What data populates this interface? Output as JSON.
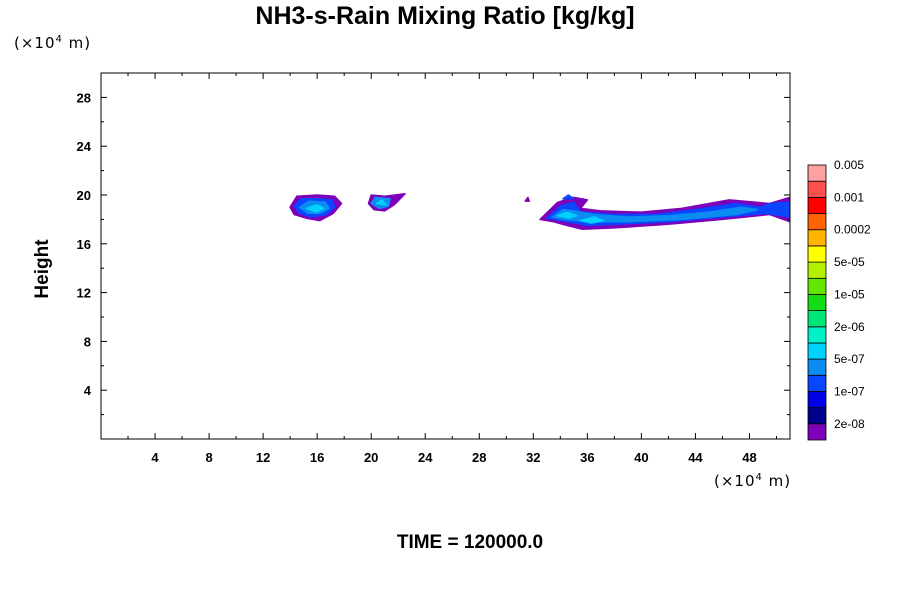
{
  "chart_data": {
    "type": "heatmap",
    "title": "NH3-s-Rain Mixing Ratio [kg/kg]",
    "ylabel": "Height",
    "xlabel": "",
    "x_unit": {
      "prefix": "(×10",
      "exp": "4",
      "suffix": " m)"
    },
    "y_unit": {
      "prefix": "(×10",
      "exp": "4",
      "suffix": " m)"
    },
    "xlim": [
      0,
      51
    ],
    "ylim": [
      0,
      30
    ],
    "x_ticks": [
      4,
      8,
      12,
      16,
      20,
      24,
      28,
      32,
      36,
      40,
      44,
      48
    ],
    "y_ticks": [
      4,
      8,
      12,
      16,
      20,
      24,
      28
    ],
    "colorbar": {
      "colors": [
        "#7e00b8",
        "#00008c",
        "#0000e6",
        "#0a46ff",
        "#0a8cf0",
        "#00d2ff",
        "#00f0c8",
        "#00e678",
        "#14dc14",
        "#64e600",
        "#b4f000",
        "#ffff00",
        "#ffb400",
        "#ff6400",
        "#ff0000",
        "#ff5050",
        "#ffa0a0"
      ],
      "labels": [
        "2e-08",
        "1e-07",
        "5e-07",
        "2e-06",
        "1e-05",
        "5e-05",
        "0.0002",
        "0.001",
        "0.005"
      ]
    },
    "regions": [
      {
        "x_range": [
          14.0,
          17.8
        ],
        "y_range": [
          17.9,
          20.0
        ],
        "max_level": "5e-07"
      },
      {
        "x_range": [
          19.8,
          22.5
        ],
        "y_range": [
          18.7,
          20.1
        ],
        "max_level": "5e-07"
      },
      {
        "x_range": [
          31.5,
          51.0
        ],
        "y_range": [
          17.2,
          20.0
        ],
        "max_level": "5e-07"
      }
    ]
  },
  "footer": {
    "time_label": "TIME = 120000.0"
  }
}
